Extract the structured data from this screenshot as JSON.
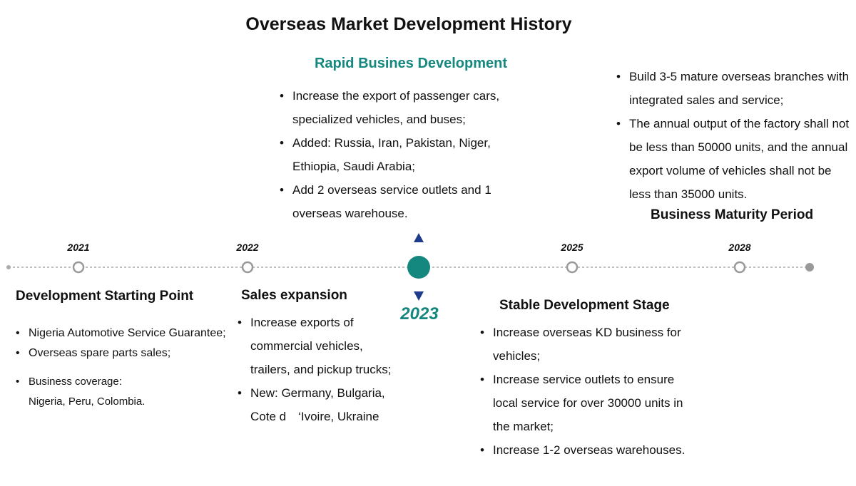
{
  "title": "Overseas Market Development History",
  "milestones": [
    {
      "year": "2021",
      "heading": "Development Starting Point",
      "items": [
        "Nigeria Automotive Service Guarantee;",
        "Overseas spare parts sales;",
        "Business coverage:\nNigeria, Peru, Colombia."
      ]
    },
    {
      "year": "2022",
      "heading": "Sales expansion",
      "items": [
        "Increase exports of commercial vehicles, trailers, and pickup trucks;",
        "New: Germany, Bulgaria, Cote d　‘Ivoire, Ukraine"
      ]
    },
    {
      "year": "2023",
      "heading": "Rapid Busines Development",
      "items": [
        "Increase the export of passenger cars, specialized vehicles, and buses;",
        "Added: Russia, Iran, Pakistan, Niger, Ethiopia, Saudi Arabia;",
        "Add 2 overseas service outlets and 1 overseas warehouse."
      ]
    },
    {
      "year": "2025",
      "heading": "Stable Development Stage",
      "items": [
        "Increase overseas KD business for vehicles;",
        "Increase service outlets to ensure local service for over 30000 units in the market;",
        "Increase 1-2 overseas warehouses."
      ]
    },
    {
      "year": "2028",
      "heading": "Business Maturity Period",
      "items": [
        "Build 3-5 mature overseas branches with integrated sales and service;",
        "The annual output of the factory shall not be less than 50000 units, and the annual export volume of vehicles shall not be less than 35000 units."
      ]
    }
  ]
}
